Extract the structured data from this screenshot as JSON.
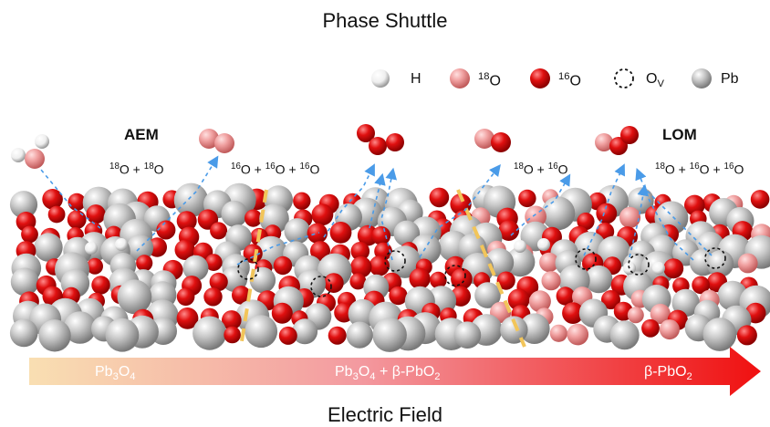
{
  "title": "Phase Shuttle",
  "footer": "Electric Field",
  "legend": [
    {
      "symbol": "H",
      "label": "H"
    },
    {
      "symbol": "18O",
      "label_sup": "18",
      "label": "O"
    },
    {
      "symbol": "16O",
      "label_sup": "16",
      "label": "O"
    },
    {
      "symbol": "Ov",
      "label": "O",
      "label_sub": "V"
    },
    {
      "symbol": "Pb",
      "label": "Pb"
    }
  ],
  "mechanisms": {
    "left": "AEM",
    "right": "LOM"
  },
  "reactions": [
    {
      "text": "18O + 18O",
      "parts": [
        "18",
        "O + ",
        "18",
        "O"
      ]
    },
    {
      "text": "16O + 16O + 16O",
      "parts": [
        "16",
        "O + ",
        "16",
        "O + ",
        "16",
        "O"
      ]
    },
    {
      "text": "18O + 16O",
      "parts": [
        "18",
        "O + ",
        "16",
        "O"
      ]
    },
    {
      "text": "18O + 16O + 16O",
      "parts": [
        "18",
        "O + ",
        "16",
        "O + ",
        "16",
        "O"
      ]
    }
  ],
  "phases": [
    {
      "base": "Pb",
      "sub1": "3",
      "mid": "O",
      "sub2": "4"
    },
    {
      "text": "Pb3O4 + β-PbO2"
    },
    {
      "base": "β-PbO",
      "sub": "2"
    }
  ],
  "colors": {
    "pb": "#b8b8b8",
    "o16": "#e01010",
    "o18": "#f08080",
    "h": "#f4f4f4",
    "arrow_start": "#f9d9a8",
    "arrow_end": "#f01010",
    "trajectory": "#4a9be8",
    "boundary": "#f2c55a"
  }
}
